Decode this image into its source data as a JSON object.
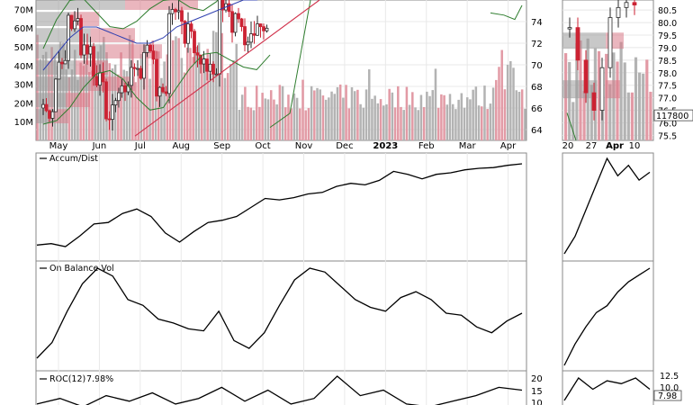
{
  "chart_data": [
    {
      "type": "candlestick",
      "panel": "price",
      "xlabels": [
        "May",
        "Jun",
        "Jul",
        "Aug",
        "Sep",
        "Oct",
        "Nov",
        "Dec",
        "2023",
        "Feb",
        "Mar",
        "Apr"
      ],
      "yticks": [
        64,
        66,
        68,
        70,
        72,
        74
      ],
      "ylim": [
        63,
        76
      ],
      "volume_ticks": [
        "10M",
        "20M",
        "30M",
        "40M",
        "50M",
        "60M",
        "70M"
      ],
      "volume_ylim": [
        0,
        75
      ],
      "grid": true,
      "series": [
        {
          "name": "",
          "role": "closes",
          "values": [
            66.0,
            69.5,
            73.5,
            71.0,
            68.5,
            66.0,
            67.5,
            69.5,
            71.5,
            68.0,
            74.5,
            73.0,
            70.5,
            69.0,
            75.5,
            74.0,
            72.0,
            74.0
          ]
        },
        {
          "name": "",
          "role": "moving-average",
          "values": [
            68.5,
            70.0,
            71.5,
            72.5,
            72.5,
            72.0,
            71.5,
            71.0,
            71.0,
            71.5,
            72.5,
            73.0,
            73.5,
            74.0,
            74.5,
            75.0,
            75.0,
            75.5
          ]
        }
      ]
    },
    {
      "type": "candlestick",
      "panel": "price-zoom",
      "xlabels": [
        "20",
        "27",
        "Apr",
        "10"
      ],
      "yticks": [
        75.5,
        76.0,
        76.5,
        77.0,
        77.5,
        78.0,
        78.5,
        79.0,
        79.5,
        80.0,
        80.5
      ],
      "ylim": [
        75.3,
        80.9
      ],
      "value_label": "117800",
      "grid": true,
      "series": [
        {
          "name": "",
          "role": "closes",
          "values": [
            79.8,
            78.5,
            77.2,
            76.5,
            78.2,
            80.2,
            80.6,
            80.8,
            80.7
          ]
        }
      ]
    },
    {
      "type": "line",
      "panel": "indicator",
      "title": "Accum/Dist",
      "series": [
        {
          "name": "Accum/Dist",
          "values": [
            10,
            12,
            8,
            22,
            38,
            40,
            52,
            58,
            48,
            26,
            14,
            28,
            40,
            43,
            48,
            60,
            72,
            70,
            73,
            78,
            80,
            88,
            92,
            90,
            96,
            108,
            104,
            98,
            104,
            106,
            110,
            112,
            113,
            116,
            118
          ]
        },
        {
          "name": "",
          "role": "zoom",
          "values": [
            10,
            30,
            60,
            90,
            120,
            100,
            112,
            95,
            104
          ]
        }
      ]
    },
    {
      "type": "line",
      "panel": "indicator",
      "title": "On Balance Vol",
      "series": [
        {
          "name": "On Balance Vol",
          "values": [
            12,
            28,
            60,
            88,
            104,
            96,
            72,
            66,
            52,
            48,
            42,
            40,
            60,
            30,
            22,
            38,
            66,
            92,
            104,
            100,
            86,
            72,
            64,
            60,
            74,
            80,
            72,
            58,
            56,
            44,
            38,
            50,
            58
          ]
        },
        {
          "name": "",
          "role": "zoom",
          "values": [
            10,
            35,
            55,
            72,
            80,
            96,
            108,
            116,
            124
          ]
        }
      ]
    },
    {
      "type": "line",
      "panel": "indicator",
      "title": "ROC(12)",
      "current_value": "7.98%",
      "yticks": [
        10,
        15,
        20
      ],
      "zoom_yticks": [
        "10.0",
        "12.5"
      ],
      "zoom_value_label": "7.98",
      "series": [
        {
          "name": "ROC(12)",
          "values": [
            7,
            9,
            6,
            10,
            8,
            11,
            7,
            9,
            13,
            8,
            12,
            7,
            9,
            17,
            10,
            12,
            7,
            6,
            8,
            10,
            13,
            12
          ]
        },
        {
          "name": "",
          "role": "zoom",
          "values": [
            8,
            12,
            10,
            11.5,
            11,
            12,
            10
          ]
        }
      ]
    }
  ],
  "colors": {
    "up": "#2a2a2a",
    "down": "#cc2233",
    "volume_up": "#b3b3b3",
    "volume_down": "#e29aa5",
    "band": "#2e7d2e",
    "ma_blue": "#3040b0",
    "trend": "#d0304a",
    "ref_line": "#2e7d2e",
    "grid": "#e8e8e8",
    "ticker": "#000000"
  }
}
